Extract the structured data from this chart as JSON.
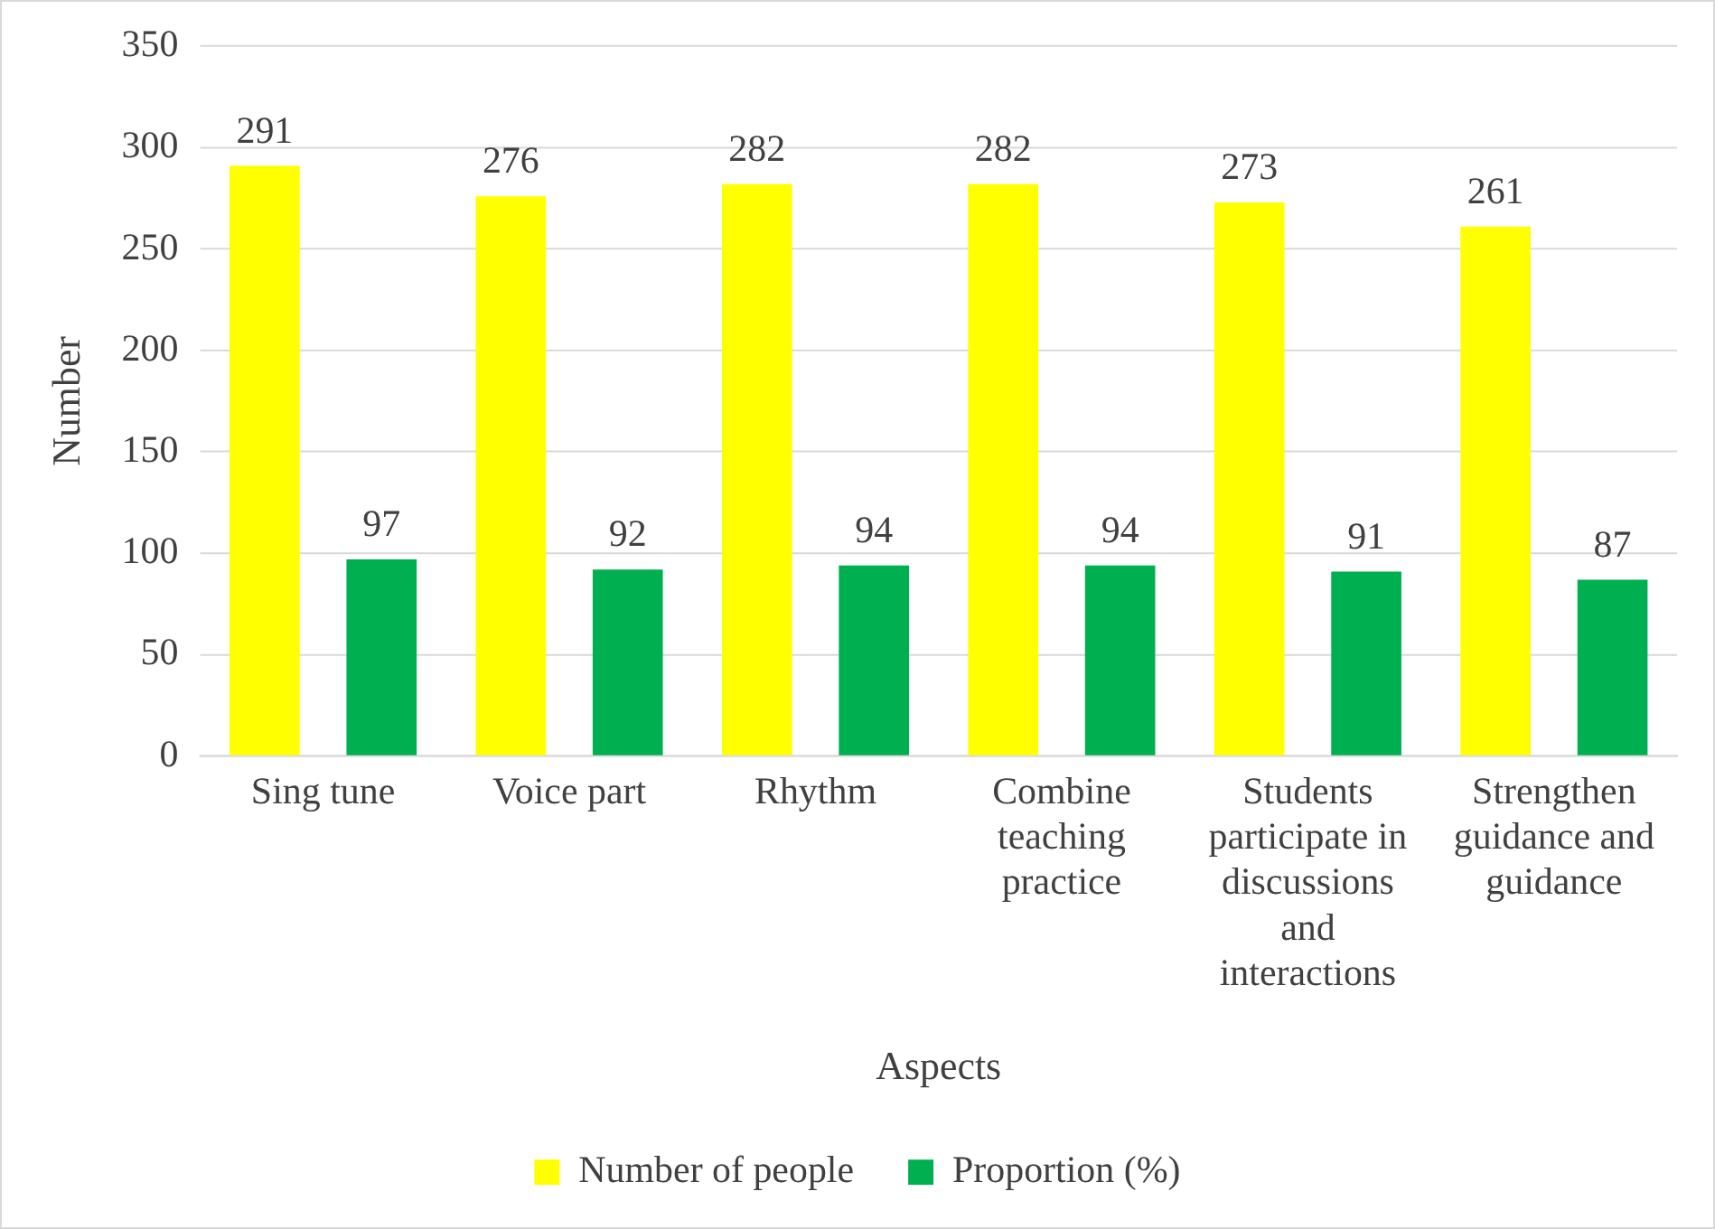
{
  "chart_data": {
    "type": "bar",
    "xlabel": "Aspects",
    "ylabel": "Number",
    "categories": [
      "Sing tune",
      "Voice part",
      "Rhythm",
      "Combine teaching practice",
      "Students participate in discussions and interactions",
      "Strengthen guidance and guidance"
    ],
    "series": [
      {
        "name": "Number of people",
        "color": "#ffff00",
        "values": [
          291,
          276,
          282,
          282,
          273,
          261
        ]
      },
      {
        "name": "Proportion (%)",
        "color": "#00b050",
        "values": [
          97,
          92,
          94,
          94,
          91,
          87
        ]
      }
    ],
    "ylim": [
      0,
      350
    ],
    "yticks": [
      0,
      50,
      100,
      150,
      200,
      250,
      300,
      350
    ],
    "grid": "y",
    "legend": "bottom",
    "data_labels": true
  }
}
